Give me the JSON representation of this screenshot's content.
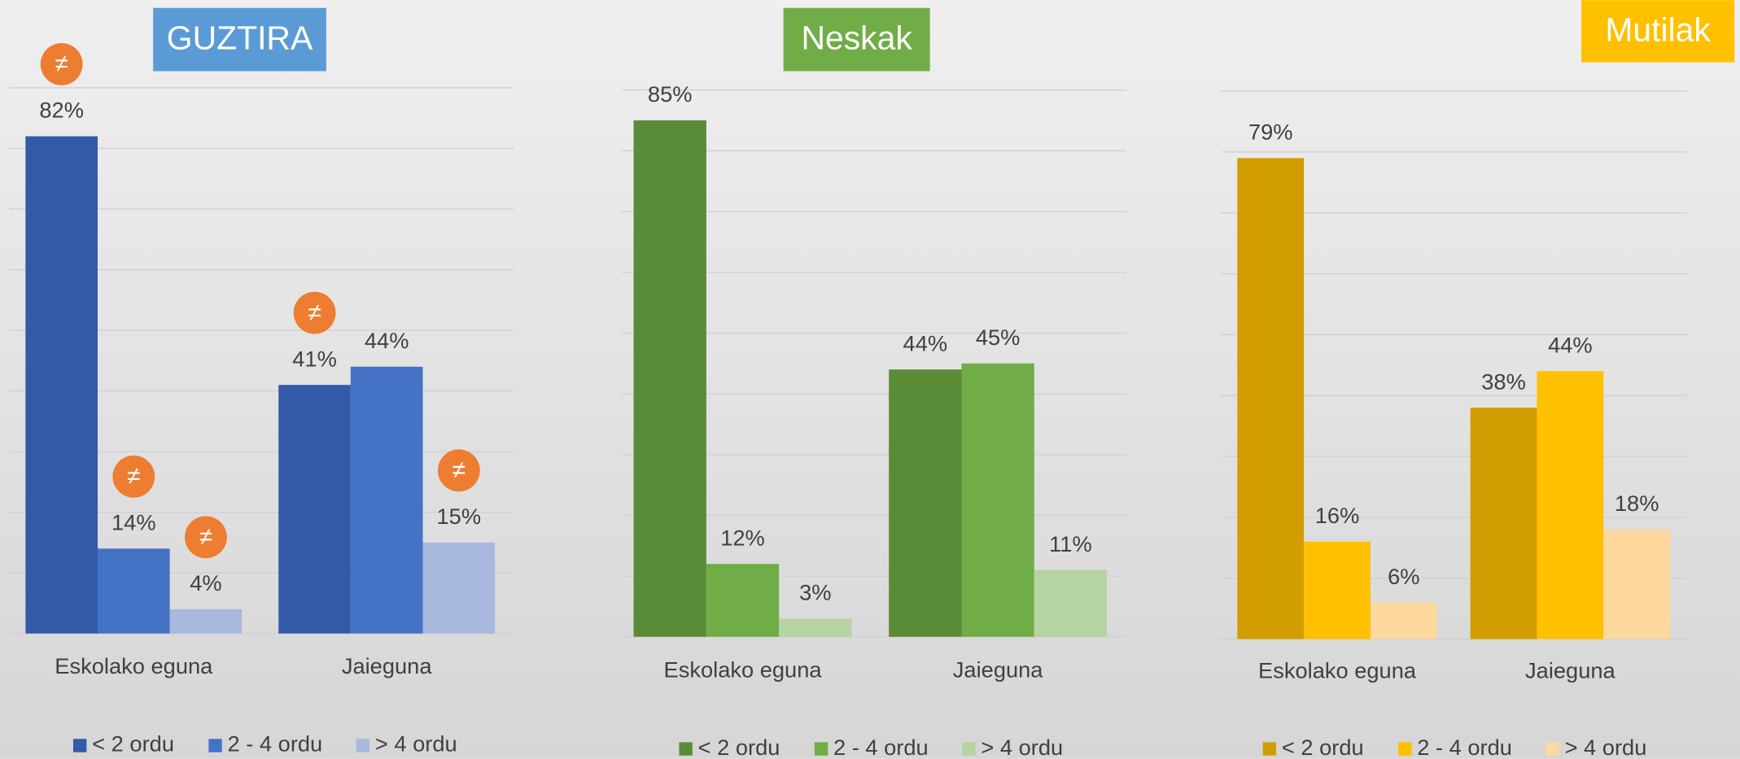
{
  "chart_data": [
    {
      "type": "bar",
      "title": "GUZTIRA",
      "title_color": "#5b9bd5",
      "categories": [
        "Eskolako eguna",
        "Jaieguna"
      ],
      "series": [
        {
          "name": "< 2 ordu",
          "color": "#335aa6",
          "values": [
            82,
            41
          ],
          "value_labels": [
            "82%",
            "41%"
          ]
        },
        {
          "name": "2 - 4 ordu",
          "color": "#4472c4",
          "values": [
            14,
            44
          ],
          "value_labels": [
            "14%",
            "44%"
          ]
        },
        {
          "name": "> 4 ordu",
          "color": "#a9b8de",
          "values": [
            4,
            15
          ],
          "value_labels": [
            "4%",
            "15%"
          ]
        }
      ],
      "annotations": [
        {
          "text": "≠",
          "series": 0,
          "category": 0
        },
        {
          "text": "≠",
          "series": 1,
          "category": 0
        },
        {
          "text": "≠",
          "series": 2,
          "category": 0
        },
        {
          "text": "≠",
          "series": 0,
          "category": 1
        },
        {
          "text": "≠",
          "series": 2,
          "category": 1
        }
      ],
      "annotation_color": "#ed7d31",
      "ylim": [
        0,
        90
      ],
      "yticks": [
        0,
        10,
        20,
        30,
        40,
        50,
        60,
        70,
        80,
        90
      ],
      "grid": true,
      "legend": "bottom"
    },
    {
      "type": "bar",
      "title": "Neskak",
      "title_color": "#70ad47",
      "categories": [
        "Eskolako eguna",
        "Jaieguna"
      ],
      "series": [
        {
          "name": "< 2 ordu",
          "color": "#5a8c38",
          "values": [
            85,
            44
          ],
          "value_labels": [
            "85%",
            "44%"
          ]
        },
        {
          "name": "2 - 4 ordu",
          "color": "#70ad47",
          "values": [
            12,
            45
          ],
          "value_labels": [
            "12%",
            "45%"
          ]
        },
        {
          "name": "> 4 ordu",
          "color": "#b5d3a3",
          "values": [
            3,
            11
          ],
          "value_labels": [
            "3%",
            "11%"
          ]
        }
      ],
      "ylim": [
        0,
        90
      ],
      "yticks": [
        0,
        10,
        20,
        30,
        40,
        50,
        60,
        70,
        80,
        90
      ],
      "grid": true,
      "legend": "bottom"
    },
    {
      "type": "bar",
      "title": "Mutilak",
      "title_color": "#ffc000",
      "categories": [
        "Eskolako eguna",
        "Jaieguna"
      ],
      "series": [
        {
          "name": "< 2 ordu",
          "color": "#d19d00",
          "values": [
            79,
            38
          ],
          "value_labels": [
            "79%",
            "38%"
          ]
        },
        {
          "name": "2 - 4 ordu",
          "color": "#ffc000",
          "values": [
            16,
            44
          ],
          "value_labels": [
            "16%",
            "44%"
          ]
        },
        {
          "name": "> 4 ordu",
          "color": "#fdd89f",
          "values": [
            6,
            18
          ],
          "value_labels": [
            "6%",
            "18%"
          ]
        }
      ],
      "ylim": [
        0,
        90
      ],
      "yticks": [
        0,
        10,
        20,
        30,
        40,
        50,
        60,
        70,
        80,
        90
      ],
      "grid": true,
      "legend": "bottom"
    }
  ]
}
